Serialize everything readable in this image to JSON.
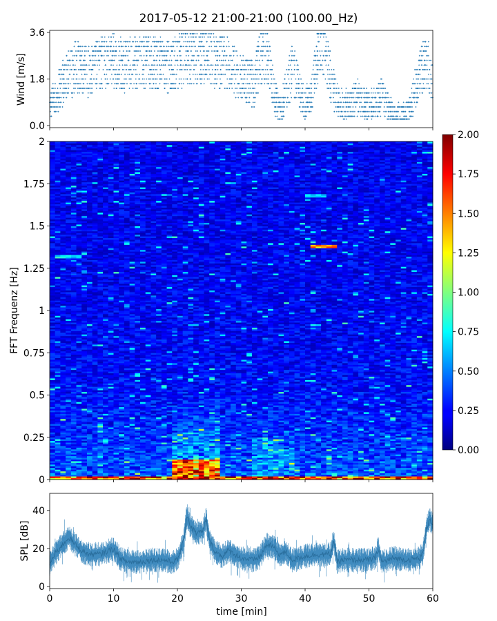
{
  "chart_data": [
    {
      "type": "scatter",
      "title": "2017-05-12 21:00-21:00 (100.00_Hz)",
      "ylabel": "Wind [m/s]",
      "xlim": [
        0,
        60
      ],
      "ylim": [
        0,
        3.6
      ],
      "yticks": [
        "0.0",
        "1.8",
        "3.6"
      ],
      "color": "#1f77b4",
      "envelope": {
        "x": [
          0,
          2,
          4,
          6,
          8,
          10,
          12,
          14,
          16,
          18,
          20,
          22,
          24,
          26,
          28,
          30,
          32,
          33,
          34,
          35,
          36,
          38,
          40,
          41,
          42,
          43,
          44,
          45,
          46,
          48,
          50,
          52,
          54,
          56,
          58,
          59,
          60
        ],
        "mean": [
          0.9,
          1.6,
          2.3,
          2.1,
          2.4,
          2.5,
          2.3,
          2.5,
          2.4,
          2.3,
          2.5,
          2.6,
          2.7,
          2.5,
          2.4,
          1.8,
          1.6,
          2.6,
          2.8,
          1.4,
          0.5,
          2.2,
          0.8,
          1.2,
          2.8,
          3.0,
          1.8,
          1.0,
          0.7,
          1.1,
          0.7,
          1.1,
          0.3,
          0.4,
          2.0,
          2.6,
          1.6
        ]
      },
      "points": 3000
    },
    {
      "type": "heatmap",
      "ylabel": "FFT Frequenz [Hz]",
      "xlim": [
        0,
        60
      ],
      "ylim": [
        0,
        2
      ],
      "yticks": [
        "0",
        "0.25",
        "0.5",
        "0.75",
        "1",
        "1.25",
        "1.5",
        "1.75",
        "2"
      ],
      "colormap": "jet",
      "colorbar": {
        "range": [
          0,
          2
        ],
        "ticks": [
          "0.00",
          "0.25",
          "0.50",
          "0.75",
          "1.00",
          "1.25",
          "1.50",
          "1.75",
          "2.00"
        ]
      },
      "features": [
        {
          "x": [
            1,
            5
          ],
          "freq": 1.32,
          "value": 0.8
        },
        {
          "x": [
            41,
            45
          ],
          "freq": 1.38,
          "value": 1.6
        },
        {
          "x": [
            40,
            43
          ],
          "freq": 1.68,
          "value": 0.7
        },
        {
          "x": [
            19,
            27
          ],
          "freq": [
            0,
            0.12
          ],
          "value": 1.4
        },
        {
          "x": [
            0,
            60
          ],
          "freq": [
            0,
            0.02
          ],
          "value": 1.8
        }
      ]
    },
    {
      "type": "line",
      "ylabel": "SPL [dB]",
      "xlabel": "time [min]",
      "xlim": [
        0,
        60
      ],
      "ylim": [
        -1,
        49
      ],
      "yticks": [
        "0",
        "20",
        "40"
      ],
      "xticks": [
        "0",
        "10",
        "20",
        "30",
        "40",
        "50",
        "60"
      ],
      "color": "#1f77b4",
      "x": [
        0,
        1,
        2,
        3,
        4,
        5,
        6,
        8,
        10,
        11,
        12,
        14,
        16,
        18,
        19,
        20,
        21,
        21.5,
        22,
        23,
        24,
        24.5,
        25,
        26,
        27,
        28,
        30,
        32,
        33,
        34,
        35,
        36,
        37,
        38,
        40,
        42,
        44,
        44.5,
        45,
        46,
        48,
        50,
        51,
        51.5,
        52,
        54,
        56,
        58,
        58.5,
        59,
        59.5,
        60
      ],
      "mean": [
        12,
        18,
        22,
        26,
        22,
        19,
        17,
        17,
        20,
        15,
        13,
        13,
        14,
        14,
        13,
        14,
        24,
        38,
        32,
        28,
        29,
        36,
        24,
        18,
        16,
        19,
        15,
        14,
        16,
        22,
        21,
        17,
        18,
        14,
        16,
        17,
        17,
        25,
        13,
        14,
        14,
        14,
        15,
        20,
        13,
        15,
        14,
        15,
        18,
        30,
        36,
        33
      ],
      "band": 5
    }
  ]
}
